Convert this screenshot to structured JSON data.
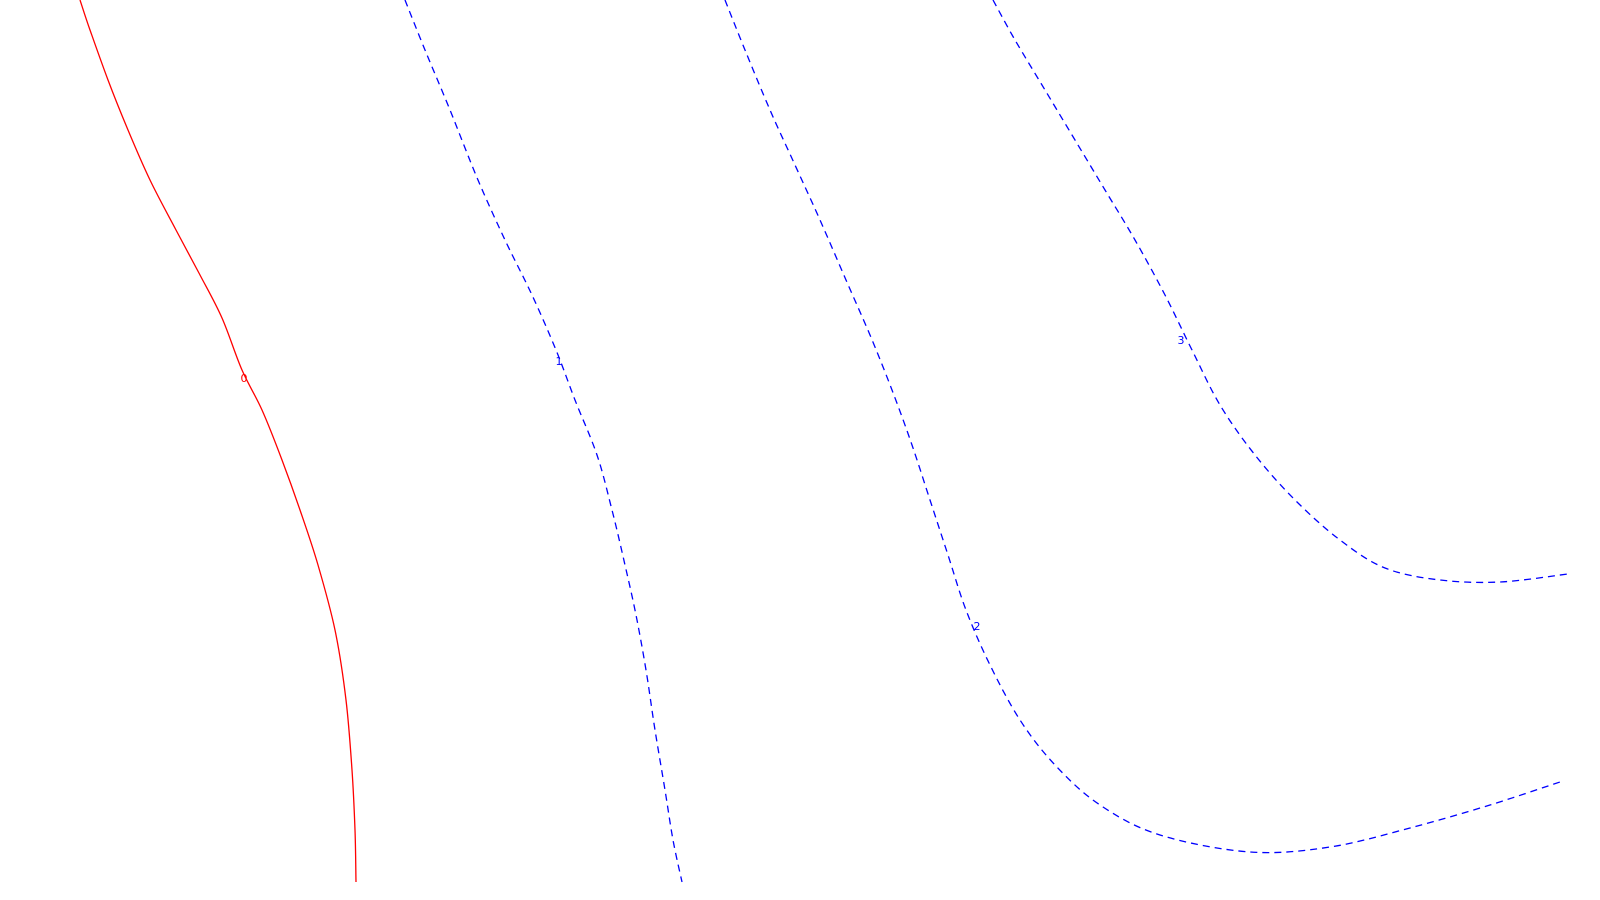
{
  "chart_data": {
    "type": "contour",
    "title": "",
    "xlabel": "",
    "ylabel": "",
    "grid": false,
    "legend": "none",
    "contours": [
      {
        "level": 0,
        "label": "0",
        "color": "#ff0000",
        "style": "solid",
        "points": [
          [
            80,
            0
          ],
          [
            90,
            30
          ],
          [
            108,
            80
          ],
          [
            128,
            130
          ],
          [
            150,
            180
          ],
          [
            176,
            230
          ],
          [
            200,
            275
          ],
          [
            222,
            318
          ],
          [
            242,
            370
          ],
          [
            262,
            410
          ],
          [
            282,
            460
          ],
          [
            300,
            510
          ],
          [
            318,
            565
          ],
          [
            335,
            630
          ],
          [
            346,
            700
          ],
          [
            352,
            770
          ],
          [
            355,
            830
          ],
          [
            356,
            882
          ]
        ]
      },
      {
        "level": 1,
        "label": "1",
        "color": "#0000ff",
        "style": "dashed",
        "points": [
          [
            405,
            0
          ],
          [
            425,
            50
          ],
          [
            450,
            110
          ],
          [
            478,
            180
          ],
          [
            505,
            240
          ],
          [
            532,
            295
          ],
          [
            556,
            350
          ],
          [
            575,
            400
          ],
          [
            597,
            455
          ],
          [
            612,
            510
          ],
          [
            625,
            565
          ],
          [
            636,
            615
          ],
          [
            646,
            670
          ],
          [
            655,
            730
          ],
          [
            665,
            790
          ],
          [
            673,
            840
          ],
          [
            682,
            882
          ]
        ]
      },
      {
        "level": 2,
        "label": "2",
        "color": "#0000ff",
        "style": "dashed",
        "points": [
          [
            725,
            0
          ],
          [
            745,
            50
          ],
          [
            770,
            110
          ],
          [
            795,
            165
          ],
          [
            820,
            220
          ],
          [
            846,
            280
          ],
          [
            870,
            335
          ],
          [
            892,
            390
          ],
          [
            912,
            445
          ],
          [
            930,
            500
          ],
          [
            948,
            555
          ],
          [
            966,
            610
          ],
          [
            990,
            665
          ],
          [
            1020,
            720
          ],
          [
            1055,
            765
          ],
          [
            1100,
            805
          ],
          [
            1160,
            835
          ],
          [
            1250,
            852
          ],
          [
            1330,
            847
          ],
          [
            1410,
            828
          ],
          [
            1490,
            805
          ],
          [
            1560,
            782
          ]
        ]
      },
      {
        "level": 3,
        "label": "3",
        "color": "#0000ff",
        "style": "dashed",
        "points": [
          [
            993,
            0
          ],
          [
            1015,
            40
          ],
          [
            1045,
            90
          ],
          [
            1075,
            140
          ],
          [
            1105,
            190
          ],
          [
            1135,
            240
          ],
          [
            1165,
            295
          ],
          [
            1192,
            350
          ],
          [
            1220,
            405
          ],
          [
            1255,
            455
          ],
          [
            1295,
            500
          ],
          [
            1340,
            540
          ],
          [
            1385,
            568
          ],
          [
            1440,
            580
          ],
          [
            1500,
            582
          ],
          [
            1568,
            574
          ]
        ]
      }
    ],
    "labels": [
      {
        "text": "0",
        "level": 0,
        "color": "#ff0000"
      },
      {
        "text": "1",
        "level": 1,
        "color": "#0000ff"
      },
      {
        "text": "2",
        "level": 2,
        "color": "#0000ff"
      },
      {
        "text": "3",
        "level": 3,
        "color": "#0000ff"
      }
    ]
  }
}
